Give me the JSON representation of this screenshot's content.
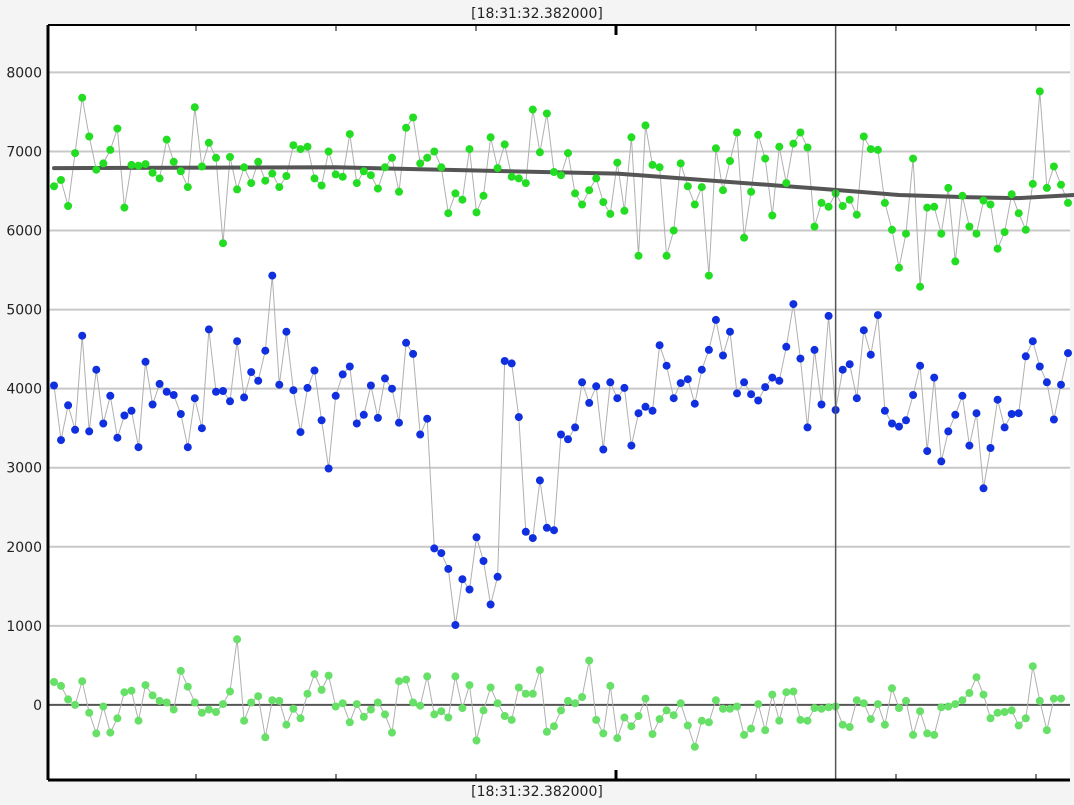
{
  "header": {
    "time_label": "[18:31:32.382000]"
  },
  "footer": {
    "time_label": "[18:31:32.382000]"
  },
  "colors": {
    "background": "#ffffff",
    "grid": "#c8c8c8",
    "frame": "#000000",
    "connector": "#b0b0b0",
    "trend": "#555555",
    "cursor": "#555555",
    "zero_line": "#555555"
  },
  "chart_data": {
    "type": "scatter",
    "title": "",
    "xlabel": "",
    "ylabel": "",
    "ylim": [
      -950,
      8600
    ],
    "yticks": [
      0,
      1000,
      2000,
      3000,
      4000,
      5000,
      6000,
      7000,
      8000
    ],
    "grid": true,
    "legend": "none",
    "cursor_index": 111,
    "series": [
      {
        "color": "#22dd22",
        "style": "markers-connected",
        "values": [
          6560,
          6640,
          6310,
          6980,
          7680,
          7190,
          6770,
          6850,
          7020,
          7290,
          6290,
          6830,
          6820,
          6840,
          6730,
          6660,
          7150,
          6870,
          6750,
          6550,
          7560,
          6810,
          7110,
          6920,
          5840,
          6930,
          6520,
          6800,
          6600,
          6870,
          6630,
          6720,
          6550,
          6690,
          7080,
          7030,
          7060,
          6660,
          6570,
          7000,
          6710,
          6680,
          7220,
          6600,
          6750,
          6700,
          6530,
          6800,
          6920,
          6490,
          7300,
          7430,
          6850,
          6920,
          7000,
          6800,
          6220,
          6470,
          6390,
          7030,
          6230,
          6440,
          7180,
          6790,
          7090,
          6680,
          6660,
          6600,
          7530,
          6990,
          7480,
          6740,
          6700,
          6980,
          6470,
          6330,
          6510,
          6660,
          6360,
          6210,
          6860,
          6250,
          7180,
          5680,
          7330,
          6830,
          6800,
          5680,
          6000,
          6850,
          6560,
          6330,
          6550,
          5430,
          7040,
          6510,
          6880,
          7240,
          5910,
          6490,
          7210,
          6910,
          6190,
          7060,
          6600,
          7100,
          7240,
          7050,
          6050,
          6350,
          6300,
          6470,
          6310,
          6390,
          6200,
          7190,
          7030,
          7020,
          6350,
          6010,
          5530,
          5960,
          6910,
          5290,
          6290,
          6300,
          5960,
          6540,
          5610,
          6440,
          6050,
          5960,
          6380,
          6330,
          5770,
          5980,
          6460,
          6220,
          6010,
          6590,
          7760,
          6540,
          6810,
          6580,
          6350
        ]
      },
      {
        "color": "#1030e0",
        "style": "markers-connected",
        "values": [
          4040,
          3350,
          3790,
          3480,
          4670,
          3460,
          4240,
          3560,
          3910,
          3380,
          3660,
          3720,
          3260,
          4340,
          3800,
          4060,
          3960,
          3920,
          3680,
          3260,
          3880,
          3500,
          4750,
          3960,
          3970,
          3840,
          4600,
          3890,
          4210,
          4100,
          4480,
          5430,
          4050,
          4720,
          3980,
          3450,
          4010,
          4230,
          3600,
          2990,
          3910,
          4180,
          4280,
          3560,
          3670,
          4040,
          3630,
          4130,
          4000,
          3570,
          4580,
          4440,
          3420,
          3620,
          1980,
          1920,
          1720,
          1010,
          1590,
          1460,
          2120,
          1820,
          1270,
          1620,
          4350,
          4320,
          3640,
          2190,
          2110,
          2840,
          2240,
          2210,
          3420,
          3360,
          3510,
          4080,
          3820,
          4030,
          3230,
          4080,
          3880,
          4010,
          3280,
          3690,
          3770,
          3720,
          4550,
          4290,
          3880,
          4070,
          4120,
          3810,
          4240,
          4490,
          4870,
          4420,
          4720,
          3940,
          4080,
          3930,
          3850,
          4020,
          4140,
          4100,
          4530,
          5070,
          4380,
          3510,
          4490,
          3800,
          4920,
          3730,
          4240,
          4310,
          3880,
          4740,
          4430,
          4930,
          3720,
          3560,
          3520,
          3600,
          3920,
          4290,
          3210,
          4140,
          3080,
          3460,
          3670,
          3910,
          3280,
          3690,
          2740,
          3250,
          3860,
          3510,
          3680,
          3690,
          4410,
          4600,
          4280,
          4080,
          3610,
          4050,
          4450
        ]
      },
      {
        "color": "#66e066",
        "style": "markers-connected",
        "values": [
          290,
          240,
          70,
          0,
          300,
          -100,
          -360,
          -20,
          -350,
          -170,
          160,
          180,
          -200,
          250,
          120,
          50,
          30,
          -60,
          430,
          230,
          30,
          -100,
          -60,
          -90,
          10,
          170,
          830,
          -200,
          30,
          110,
          -410,
          60,
          50,
          -250,
          -50,
          -170,
          140,
          390,
          190,
          370,
          -20,
          20,
          -220,
          10,
          -150,
          -60,
          30,
          -120,
          -350,
          300,
          320,
          30,
          -10,
          360,
          -120,
          -80,
          -160,
          360,
          -40,
          250,
          -450,
          -70,
          220,
          20,
          -140,
          -190,
          220,
          140,
          140,
          440,
          -340,
          -270,
          -70,
          50,
          20,
          100,
          560,
          -190,
          -360,
          240,
          -420,
          -160,
          -270,
          -140,
          80,
          -370,
          -180,
          -70,
          -130,
          20,
          -260,
          -530,
          -200,
          -220,
          60,
          -50,
          -50,
          -20,
          -380,
          -300,
          10,
          -320,
          130,
          -200,
          160,
          170,
          -190,
          -200,
          -40,
          -50,
          -30,
          -20,
          -250,
          -280,
          60,
          20,
          -180,
          10,
          -250,
          210,
          -40,
          50,
          -380,
          -80,
          -360,
          -380,
          -30,
          -20,
          10,
          60,
          150,
          350,
          130,
          -170,
          -100,
          -90,
          -70,
          -260,
          -170,
          490,
          50,
          -320,
          80,
          80
        ]
      },
      {
        "color": "#555555",
        "style": "thick-line",
        "name": "",
        "x": [
          0,
          40,
          60,
          80,
          95,
          110,
          120,
          130,
          137,
          145,
          149
        ],
        "values": [
          6790,
          6800,
          6760,
          6720,
          6620,
          6520,
          6450,
          6420,
          6410,
          6450,
          6460
        ]
      }
    ]
  }
}
